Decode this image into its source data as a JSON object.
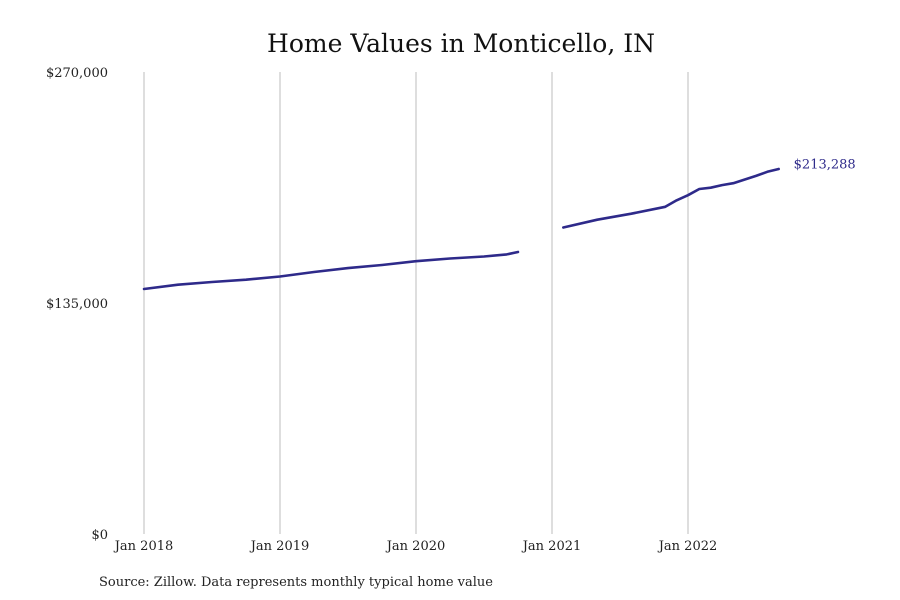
{
  "chart_data": {
    "type": "line",
    "title": "Home Values in Monticello, IN",
    "source": "Source: Zillow. Data represents monthly typical home value",
    "xlabel": "",
    "ylabel": "",
    "ylim": [
      0,
      270000
    ],
    "yticks": [
      {
        "value": 0,
        "label": "$0"
      },
      {
        "value": 135000,
        "label": "$135,000"
      },
      {
        "value": 270000,
        "label": "$270,000"
      }
    ],
    "xticks": [
      {
        "value": "2018-01",
        "label": "Jan 2018"
      },
      {
        "value": "2019-01",
        "label": "Jan 2019"
      },
      {
        "value": "2020-01",
        "label": "Jan 2020"
      },
      {
        "value": "2021-01",
        "label": "Jan 2021"
      },
      {
        "value": "2022-01",
        "label": "Jan 2022"
      }
    ],
    "grid": "vertical",
    "colors": {
      "line": "#2e2a8a",
      "grid": "#bdbdbd"
    },
    "end_label": "$213,288",
    "series": [
      {
        "segments": [
          [
            [
              "2018-01",
              143200
            ],
            [
              "2018-04",
              145700
            ],
            [
              "2018-07",
              147300
            ],
            [
              "2018-10",
              148600
            ],
            [
              "2019-01",
              150500
            ],
            [
              "2019-04",
              153100
            ],
            [
              "2019-07",
              155400
            ],
            [
              "2019-10",
              157200
            ],
            [
              "2020-01",
              159400
            ],
            [
              "2020-04",
              161000
            ],
            [
              "2020-07",
              162200
            ],
            [
              "2020-09",
              163400
            ],
            [
              "2020-10",
              164800
            ]
          ],
          [
            [
              "2021-02",
              179100
            ],
            [
              "2021-05",
              183700
            ],
            [
              "2021-08",
              187200
            ],
            [
              "2021-11",
              191200
            ],
            [
              "2021-12",
              195000
            ],
            [
              "2022-01",
              198000
            ],
            [
              "2022-02",
              201600
            ],
            [
              "2022-03",
              202400
            ],
            [
              "2022-04",
              203900
            ],
            [
              "2022-05",
              205000
            ],
            [
              "2022-07",
              209300
            ],
            [
              "2022-08",
              211700
            ],
            [
              "2022-09",
              213288
            ]
          ]
        ]
      }
    ]
  }
}
